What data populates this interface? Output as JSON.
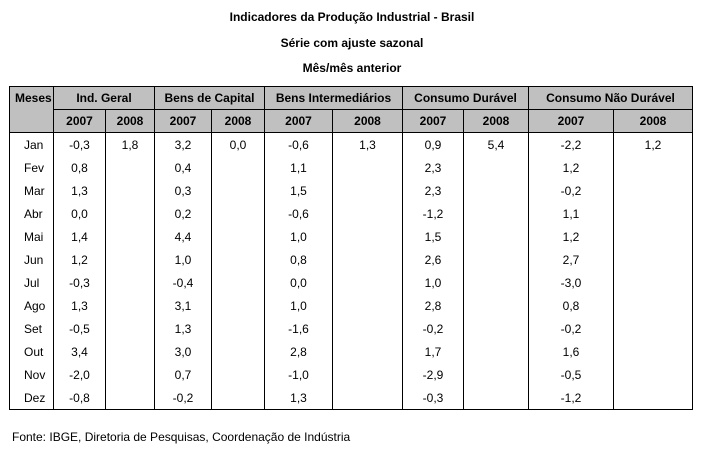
{
  "title": "Indicadores da Produção Industrial - Brasil",
  "subtitle": "Série com ajuste sazonal",
  "subtitle2": "Mês/mês anterior",
  "header": {
    "months_label": "Meses",
    "groups": [
      "Ind. Geral",
      "Bens de Capital",
      "Bens Intermediários",
      "Consumo Durável",
      "Consumo Não Durável"
    ],
    "years": [
      "2007",
      "2008",
      "2007",
      "2008",
      "2007",
      "2008",
      "2007",
      "2008",
      "2007",
      "2008"
    ]
  },
  "rows": [
    {
      "month": "Jan",
      "v": [
        "-0,3",
        "1,8",
        "3,2",
        "0,0",
        "-0,6",
        "1,3",
        "0,9",
        "5,4",
        "-2,2",
        "1,2"
      ]
    },
    {
      "month": "Fev",
      "v": [
        "0,8",
        "",
        "0,4",
        "",
        "1,1",
        "",
        "2,3",
        "",
        "1,2",
        ""
      ]
    },
    {
      "month": "Mar",
      "v": [
        "1,3",
        "",
        "0,3",
        "",
        "1,5",
        "",
        "2,3",
        "",
        "-0,2",
        ""
      ]
    },
    {
      "month": "Abr",
      "v": [
        "0,0",
        "",
        "0,2",
        "",
        "-0,6",
        "",
        "-1,2",
        "",
        "1,1",
        ""
      ]
    },
    {
      "month": "Mai",
      "v": [
        "1,4",
        "",
        "4,4",
        "",
        "1,0",
        "",
        "1,5",
        "",
        "1,2",
        ""
      ]
    },
    {
      "month": "Jun",
      "v": [
        "1,2",
        "",
        "1,0",
        "",
        "0,8",
        "",
        "2,6",
        "",
        "2,7",
        ""
      ]
    },
    {
      "month": "Jul",
      "v": [
        "-0,3",
        "",
        "-0,4",
        "",
        "0,0",
        "",
        "1,0",
        "",
        "-3,0",
        ""
      ]
    },
    {
      "month": "Ago",
      "v": [
        "1,3",
        "",
        "3,1",
        "",
        "1,0",
        "",
        "2,8",
        "",
        "0,8",
        ""
      ]
    },
    {
      "month": "Set",
      "v": [
        "-0,5",
        "",
        "1,3",
        "",
        "-1,6",
        "",
        "-0,2",
        "",
        "-0,2",
        ""
      ]
    },
    {
      "month": "Out",
      "v": [
        "3,4",
        "",
        "3,0",
        "",
        "2,8",
        "",
        "1,7",
        "",
        "1,6",
        ""
      ]
    },
    {
      "month": "Nov",
      "v": [
        "-2,0",
        "",
        "0,7",
        "",
        "-1,0",
        "",
        "-2,9",
        "",
        "-0,5",
        ""
      ]
    },
    {
      "month": "Dez",
      "v": [
        "-0,8",
        "",
        "-0,2",
        "",
        "1,3",
        "",
        "-0,3",
        "",
        "-1,2",
        ""
      ]
    }
  ],
  "footer": "Fonte: IBGE, Diretoria de Pesquisas, Coordenação de Indústria"
}
